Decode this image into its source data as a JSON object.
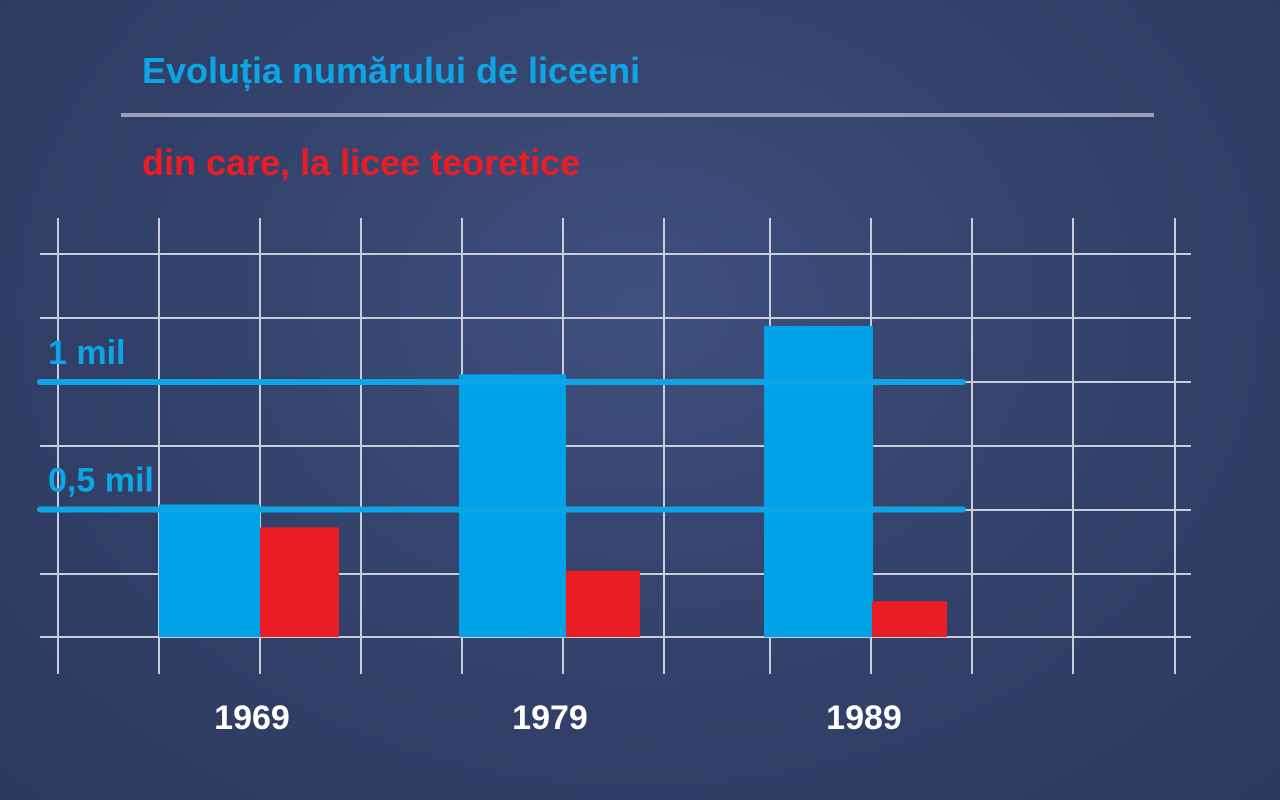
{
  "chart_data": {
    "type": "bar",
    "title": "Evoluția numărului de liceeni",
    "subtitle": "din care, la licee teoretice",
    "categories": [
      "1969",
      "1979",
      "1989"
    ],
    "series": [
      {
        "values": [
          0.52,
          1.03,
          1.22
        ],
        "color": "#00a3e8"
      },
      {
        "values": [
          0.43,
          0.26,
          0.14
        ],
        "color": "#ec1c24"
      }
    ],
    "reference_lines": [
      {
        "value": 1.0,
        "label": "1 mil",
        "color": "#0ea5e6"
      },
      {
        "value": 0.5,
        "label": "0,5 mil",
        "color": "#0ea5e6"
      }
    ],
    "ylim": [
      0,
      1.5
    ],
    "grid": true,
    "legend": "none"
  }
}
